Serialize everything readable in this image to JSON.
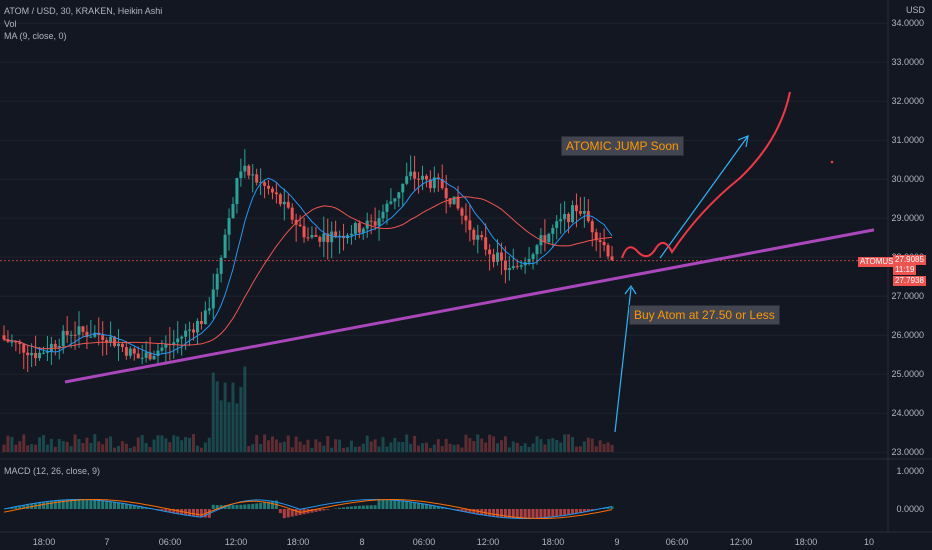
{
  "header": {
    "symbol_line": "ATOM / USD, 30, KRAKEN, Heikin Ashi",
    "volume_label": "Vol",
    "ma_label": "MA (9, close, 0)",
    "macd_label": "MACD (12, 26, close, 9)",
    "currency": "USD"
  },
  "annotations": {
    "jump_text": "ATOMIC JUMP Soon",
    "buy_text": "Buy Atom at 27.50 or Less"
  },
  "price_scale": {
    "ticker_badge": "ATOMUSD",
    "last_price": "27.9085",
    "countdown": "11:19",
    "ma_price": "27.7938"
  },
  "colors": {
    "background": "#131722",
    "up": "#26a69a",
    "down": "#ef5350",
    "ma": "#2196f3",
    "trendline": "#ab47bc",
    "callout": "#ff9800",
    "projection_arrow": "#29b6f6",
    "projection_path": "#f23645"
  },
  "chart_data": [
    {
      "type": "candlestick",
      "title": "ATOM / USD, 30, KRAKEN, Heikin Ashi",
      "ylim": [
        23.0,
        34.3
      ],
      "y_ticks": [
        "34.0000",
        "33.0000",
        "32.0000",
        "31.0000",
        "30.0000",
        "29.0000",
        "28.0000",
        "27.0000",
        "26.0000",
        "25.0000",
        "24.0000",
        "23.0000"
      ],
      "x_tick_labels": [
        "18:00",
        "7",
        "06:00",
        "12:00",
        "18:00",
        "8",
        "06:00",
        "12:00",
        "18:00",
        "9",
        "06:00",
        "12:00",
        "18:00",
        "10"
      ],
      "series": [
        {
          "name": "MA (9, close, 0)",
          "kind": "line",
          "color": "#2196f3"
        },
        {
          "name": "Heikin Ashi",
          "kind": "candles"
        }
      ],
      "ohlc_close_path": [
        [
          "18:00 prev",
          25.9
        ],
        [
          "18:00",
          25.5
        ],
        [
          "7",
          26.1
        ],
        [
          "7 03:00",
          26.0
        ],
        [
          "06:00",
          25.4
        ],
        [
          "09:00",
          25.8
        ],
        [
          "11:00",
          26.5
        ],
        [
          "12:00",
          30.3
        ],
        [
          "15:00",
          29.6
        ],
        [
          "18:00",
          28.5
        ],
        [
          "21:00",
          28.6
        ],
        [
          "8",
          28.9
        ],
        [
          "8 03:00",
          30.1
        ],
        [
          "06:00",
          29.8
        ],
        [
          "09:00",
          28.5
        ],
        [
          "12:00",
          27.6
        ],
        [
          "15:00",
          28.5
        ],
        [
          "18:00",
          29.3
        ],
        [
          "21:00",
          28.0
        ]
      ],
      "trendline": {
        "from": [
          "7",
          24.8
        ],
        "to": [
          "10",
          28.7
        ]
      },
      "projection": {
        "from": [
          "9",
          27.9
        ],
        "to": [
          "18:00",
          32.2
        ]
      }
    },
    {
      "type": "line",
      "title": "MACD (12, 26, close, 9)",
      "ylim": [
        -0.35,
        1.15
      ],
      "y_ticks": [
        "1.0000",
        "0.0000"
      ],
      "series": [
        {
          "name": "MACD",
          "color": "#2196f3"
        },
        {
          "name": "Signal",
          "color": "#ff6d00"
        },
        {
          "name": "Histogram",
          "kind": "bars"
        }
      ]
    }
  ]
}
